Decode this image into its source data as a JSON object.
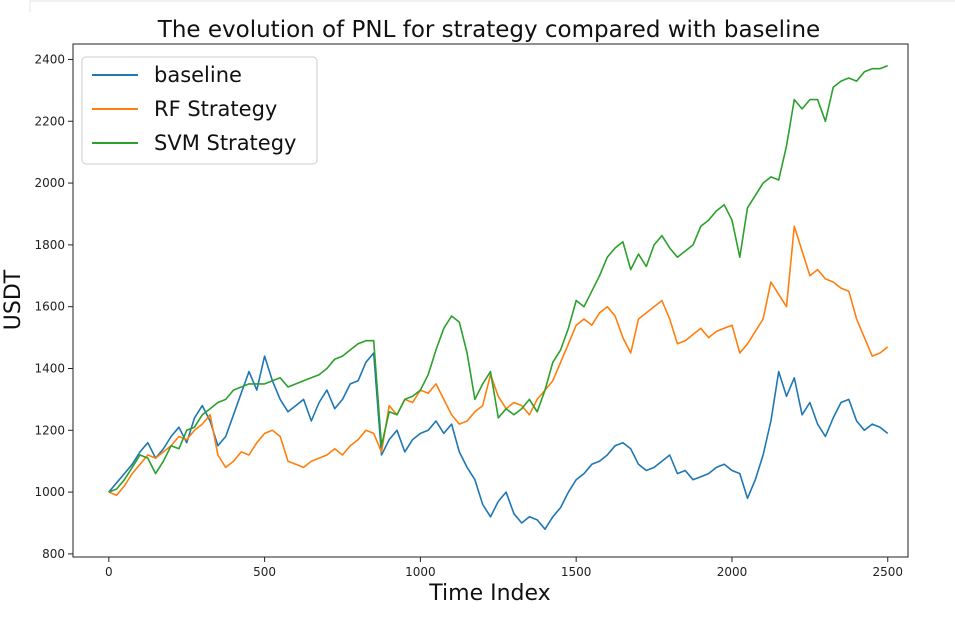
{
  "chart_data": {
    "type": "line",
    "title": "The evolution of PNL for strategy compared with baseline",
    "xlabel": "Time Index",
    "ylabel": "USDT",
    "xlim": [
      -115,
      2565
    ],
    "ylim": [
      790,
      2450
    ],
    "x_ticks": [
      0,
      500,
      1000,
      1500,
      2000,
      2500
    ],
    "y_ticks": [
      800,
      1000,
      1200,
      1400,
      1600,
      1800,
      2000,
      2200,
      2400
    ],
    "grid": false,
    "legend_position": "upper-left",
    "series": [
      {
        "name": "baseline",
        "color": "#1f77b4",
        "x": [
          0,
          25,
          50,
          75,
          100,
          125,
          150,
          175,
          200,
          225,
          250,
          275,
          300,
          325,
          350,
          375,
          400,
          425,
          450,
          475,
          500,
          525,
          550,
          575,
          600,
          625,
          650,
          675,
          700,
          725,
          750,
          775,
          800,
          825,
          850,
          875,
          900,
          925,
          950,
          975,
          1000,
          1025,
          1050,
          1075,
          1100,
          1125,
          1150,
          1175,
          1200,
          1225,
          1250,
          1275,
          1300,
          1325,
          1350,
          1375,
          1400,
          1425,
          1450,
          1475,
          1500,
          1525,
          1550,
          1575,
          1600,
          1625,
          1650,
          1675,
          1700,
          1725,
          1750,
          1775,
          1800,
          1825,
          1850,
          1875,
          1900,
          1925,
          1950,
          1975,
          2000,
          2025,
          2050,
          2075,
          2100,
          2125,
          2150,
          2175,
          2200,
          2225,
          2250,
          2275,
          2300,
          2325,
          2350,
          2375,
          2400,
          2425,
          2450,
          2475,
          2500
        ],
        "y": [
          1000,
          1030,
          1060,
          1090,
          1130,
          1160,
          1110,
          1140,
          1180,
          1210,
          1160,
          1240,
          1280,
          1230,
          1150,
          1180,
          1250,
          1320,
          1390,
          1330,
          1440,
          1360,
          1300,
          1260,
          1280,
          1300,
          1230,
          1290,
          1330,
          1270,
          1300,
          1350,
          1360,
          1420,
          1450,
          1120,
          1170,
          1200,
          1130,
          1170,
          1190,
          1200,
          1230,
          1190,
          1220,
          1130,
          1080,
          1040,
          960,
          920,
          970,
          1000,
          930,
          900,
          920,
          910,
          880,
          920,
          950,
          1000,
          1040,
          1060,
          1090,
          1100,
          1120,
          1150,
          1160,
          1140,
          1090,
          1070,
          1080,
          1100,
          1120,
          1060,
          1070,
          1040,
          1050,
          1060,
          1080,
          1090,
          1070,
          1060,
          980,
          1040,
          1120,
          1230,
          1390,
          1310,
          1370,
          1250,
          1290,
          1220,
          1180,
          1240,
          1290,
          1300,
          1230,
          1200,
          1220,
          1210,
          1190
        ]
      },
      {
        "name": "RF Strategy",
        "color": "#ff7f0e",
        "x": [
          0,
          25,
          50,
          75,
          100,
          125,
          150,
          175,
          200,
          225,
          250,
          275,
          300,
          325,
          350,
          375,
          400,
          425,
          450,
          475,
          500,
          525,
          550,
          575,
          600,
          625,
          650,
          675,
          700,
          725,
          750,
          775,
          800,
          825,
          850,
          875,
          900,
          925,
          950,
          975,
          1000,
          1025,
          1050,
          1075,
          1100,
          1125,
          1150,
          1175,
          1200,
          1225,
          1250,
          1275,
          1300,
          1325,
          1350,
          1375,
          1400,
          1425,
          1450,
          1475,
          1500,
          1525,
          1550,
          1575,
          1600,
          1625,
          1650,
          1675,
          1700,
          1725,
          1750,
          1775,
          1800,
          1825,
          1850,
          1875,
          1900,
          1925,
          1950,
          1975,
          2000,
          2025,
          2050,
          2075,
          2100,
          2125,
          2150,
          2175,
          2200,
          2225,
          2250,
          2275,
          2300,
          2325,
          2350,
          2375,
          2400,
          2425,
          2450,
          2475,
          2500
        ],
        "y": [
          1000,
          990,
          1020,
          1060,
          1090,
          1120,
          1110,
          1130,
          1150,
          1180,
          1170,
          1200,
          1220,
          1250,
          1120,
          1080,
          1100,
          1130,
          1120,
          1160,
          1190,
          1200,
          1180,
          1100,
          1090,
          1080,
          1100,
          1110,
          1120,
          1140,
          1120,
          1150,
          1170,
          1200,
          1190,
          1130,
          1280,
          1250,
          1300,
          1290,
          1330,
          1320,
          1350,
          1300,
          1250,
          1220,
          1230,
          1260,
          1280,
          1380,
          1310,
          1270,
          1290,
          1280,
          1250,
          1300,
          1330,
          1360,
          1420,
          1480,
          1540,
          1560,
          1540,
          1580,
          1600,
          1570,
          1500,
          1450,
          1560,
          1580,
          1600,
          1620,
          1560,
          1480,
          1490,
          1510,
          1530,
          1500,
          1520,
          1530,
          1540,
          1450,
          1480,
          1520,
          1560,
          1680,
          1640,
          1600,
          1860,
          1780,
          1700,
          1720,
          1690,
          1680,
          1660,
          1650,
          1560,
          1500,
          1440,
          1450,
          1470
        ]
      },
      {
        "name": "SVM Strategy",
        "color": "#2ca02c",
        "x": [
          0,
          25,
          50,
          75,
          100,
          125,
          150,
          175,
          200,
          225,
          250,
          275,
          300,
          325,
          350,
          375,
          400,
          425,
          450,
          475,
          500,
          525,
          550,
          575,
          600,
          625,
          650,
          675,
          700,
          725,
          750,
          775,
          800,
          825,
          850,
          875,
          900,
          925,
          950,
          975,
          1000,
          1025,
          1050,
          1075,
          1100,
          1125,
          1150,
          1175,
          1200,
          1225,
          1250,
          1275,
          1300,
          1325,
          1350,
          1375,
          1400,
          1425,
          1450,
          1475,
          1500,
          1525,
          1550,
          1575,
          1600,
          1625,
          1650,
          1675,
          1700,
          1725,
          1750,
          1775,
          1800,
          1825,
          1850,
          1875,
          1900,
          1925,
          1950,
          1975,
          2000,
          2025,
          2050,
          2075,
          2100,
          2125,
          2150,
          2175,
          2200,
          2225,
          2250,
          2275,
          2300,
          2325,
          2350,
          2375,
          2400,
          2425,
          2450,
          2475,
          2500
        ],
        "y": [
          1000,
          1010,
          1040,
          1080,
          1120,
          1110,
          1060,
          1100,
          1150,
          1140,
          1200,
          1210,
          1250,
          1270,
          1290,
          1300,
          1330,
          1340,
          1350,
          1350,
          1350,
          1360,
          1370,
          1340,
          1350,
          1360,
          1370,
          1380,
          1400,
          1430,
          1440,
          1460,
          1480,
          1490,
          1490,
          1150,
          1260,
          1250,
          1300,
          1310,
          1330,
          1380,
          1460,
          1530,
          1570,
          1550,
          1450,
          1300,
          1350,
          1390,
          1240,
          1270,
          1250,
          1270,
          1300,
          1260,
          1330,
          1420,
          1460,
          1530,
          1620,
          1600,
          1650,
          1700,
          1760,
          1790,
          1810,
          1720,
          1770,
          1730,
          1800,
          1830,
          1790,
          1760,
          1780,
          1800,
          1860,
          1880,
          1910,
          1930,
          1880,
          1760,
          1920,
          1960,
          2000,
          2020,
          2010,
          2120,
          2270,
          2240,
          2270,
          2270,
          2200,
          2310,
          2330,
          2340,
          2330,
          2360,
          2370,
          2370,
          2380
        ]
      }
    ]
  }
}
